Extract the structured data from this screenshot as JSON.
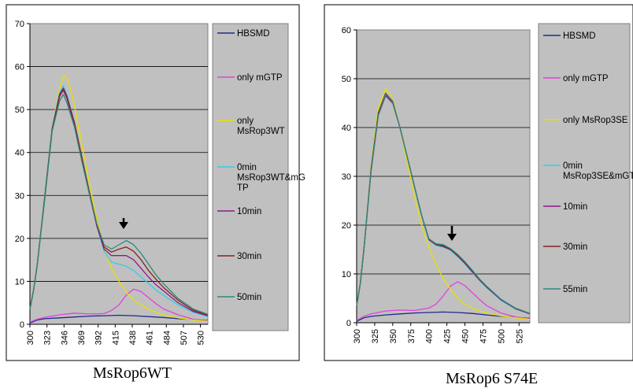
{
  "chart_data": [
    {
      "type": "line",
      "title": "MsRop6WT",
      "xlabel": "",
      "ylabel": "",
      "ylim": [
        0,
        70
      ],
      "yticks": [
        0,
        10,
        20,
        30,
        40,
        50,
        60,
        70
      ],
      "xticks": [
        300,
        323,
        346,
        369,
        392,
        415,
        438,
        461,
        484,
        507,
        530
      ],
      "xlim": [
        300,
        540
      ],
      "grid": "horizontal",
      "legend_position": "right",
      "series": [
        {
          "name": "HBSMD",
          "color": "#1f2a8c",
          "x": [
            300,
            310,
            320,
            340,
            360,
            380,
            400,
            420,
            440,
            460,
            480,
            500,
            520,
            540
          ],
          "y": [
            0.3,
            1.0,
            1.3,
            1.5,
            1.7,
            1.9,
            2.0,
            2.1,
            2.0,
            1.8,
            1.6,
            1.3,
            1.1,
            0.9
          ]
        },
        {
          "name": "only mGTP",
          "color": "#e040e0",
          "x": [
            300,
            310,
            320,
            340,
            360,
            380,
            400,
            410,
            420,
            430,
            440,
            450,
            460,
            470,
            480,
            500,
            520,
            540
          ],
          "y": [
            0.5,
            1.2,
            1.6,
            2.2,
            2.6,
            2.4,
            2.5,
            3.2,
            4.5,
            6.8,
            8.2,
            7.6,
            6.2,
            4.8,
            3.6,
            2.2,
            1.2,
            0.8
          ]
        },
        {
          "name": "only MsRop3WT",
          "color": "#e8e000",
          "x": [
            300,
            305,
            310,
            320,
            330,
            340,
            346,
            352,
            360,
            370,
            380,
            390,
            400,
            410,
            420,
            430,
            440,
            450,
            460,
            470,
            480,
            500,
            520,
            540
          ],
          "y": [
            3.5,
            8,
            14,
            30,
            46,
            55,
            58,
            56.5,
            51,
            42,
            33,
            24.5,
            18,
            13,
            10,
            7.5,
            5.5,
            4.5,
            3.5,
            2.8,
            2.2,
            1.5,
            1.0,
            0.7
          ]
        },
        {
          "name": "0min MsRop3WT&mGTP",
          "color": "#33ccee",
          "x": [
            300,
            305,
            310,
            320,
            330,
            340,
            345,
            350,
            360,
            370,
            380,
            390,
            400,
            410,
            420,
            430,
            440,
            450,
            460,
            470,
            480,
            500,
            520,
            540
          ],
          "y": [
            3.5,
            8,
            14,
            30,
            46,
            54,
            55.5,
            53.5,
            47,
            39,
            31,
            23,
            17,
            14.5,
            14,
            13.5,
            12.5,
            11,
            9.5,
            8,
            6.8,
            4.5,
            2.8,
            1.8
          ]
        },
        {
          "name": "10min",
          "color": "#8a1a8a",
          "x": [
            300,
            305,
            310,
            320,
            330,
            340,
            345,
            350,
            360,
            370,
            380,
            390,
            400,
            410,
            420,
            430,
            440,
            450,
            460,
            470,
            480,
            500,
            520,
            540
          ],
          "y": [
            3.5,
            8,
            14,
            29.5,
            45.5,
            53,
            54.5,
            52.5,
            46.5,
            38.5,
            30.5,
            23,
            17.5,
            16,
            16,
            16,
            15,
            13,
            11,
            9.2,
            7.8,
            5,
            3,
            2
          ]
        },
        {
          "name": "30min",
          "color": "#8b2020",
          "x": [
            300,
            305,
            310,
            320,
            330,
            340,
            345,
            350,
            360,
            370,
            380,
            390,
            400,
            410,
            420,
            430,
            440,
            450,
            460,
            470,
            480,
            500,
            520,
            540
          ],
          "y": [
            3.5,
            8,
            14,
            29.5,
            45.5,
            53.5,
            55,
            53,
            47,
            39,
            31,
            23.5,
            18,
            16.8,
            17.5,
            18,
            17,
            15,
            12.5,
            10.5,
            8.6,
            5.6,
            3.3,
            2.1
          ]
        },
        {
          "name": "50min",
          "color": "#2a8a7a",
          "x": [
            300,
            305,
            310,
            320,
            330,
            340,
            345,
            350,
            360,
            370,
            380,
            390,
            400,
            410,
            420,
            430,
            440,
            450,
            460,
            470,
            480,
            500,
            520,
            540
          ],
          "y": [
            3.5,
            8,
            14,
            29,
            45,
            52,
            53.5,
            51.5,
            46,
            38,
            30.5,
            23.5,
            18.5,
            17.5,
            18.5,
            19.5,
            18.5,
            16.5,
            14,
            11.5,
            9.5,
            6,
            3.6,
            2.3
          ]
        }
      ]
    },
    {
      "type": "line",
      "title": "MsRop6 S74E",
      "xlabel": "",
      "ylabel": "",
      "ylim": [
        0,
        60
      ],
      "yticks": [
        0,
        10,
        20,
        30,
        40,
        50,
        60
      ],
      "xticks": [
        300,
        325,
        350,
        375,
        400,
        425,
        450,
        475,
        500,
        525
      ],
      "xlim": [
        300,
        540
      ],
      "grid": "horizontal",
      "legend_position": "right",
      "series": [
        {
          "name": "HBSMD",
          "color": "#1f2a8c",
          "x": [
            300,
            310,
            320,
            340,
            360,
            380,
            400,
            420,
            440,
            460,
            480,
            500,
            520,
            540
          ],
          "y": [
            0.3,
            1.0,
            1.3,
            1.6,
            1.8,
            2.0,
            2.1,
            2.2,
            2.1,
            1.9,
            1.6,
            1.3,
            1.1,
            0.9
          ]
        },
        {
          "name": "only mGTP",
          "color": "#e040e0",
          "x": [
            300,
            310,
            320,
            340,
            360,
            380,
            400,
            410,
            420,
            430,
            440,
            450,
            460,
            470,
            480,
            500,
            520,
            540
          ],
          "y": [
            0.5,
            1.3,
            1.8,
            2.4,
            2.6,
            2.5,
            3.0,
            3.8,
            5.5,
            7.5,
            8.4,
            7.6,
            6.2,
            4.8,
            3.5,
            2.0,
            1.2,
            0.8
          ]
        },
        {
          "name": "only MsRop3SE",
          "color": "#e8e000",
          "x": [
            300,
            305,
            310,
            320,
            330,
            340,
            350,
            360,
            370,
            380,
            390,
            400,
            410,
            420,
            430,
            440,
            450,
            460,
            470,
            480,
            500,
            520,
            540
          ],
          "y": [
            3.5,
            8,
            15,
            32,
            44,
            48,
            46,
            40,
            33,
            26,
            20,
            15.5,
            12,
            9,
            6.8,
            5,
            3.8,
            3,
            2.4,
            2,
            1.4,
            1,
            0.7
          ]
        },
        {
          "name": "0min MsRop3SE&mGTP",
          "color": "#33ccee",
          "x": [
            300,
            305,
            310,
            320,
            330,
            340,
            350,
            360,
            370,
            380,
            390,
            400,
            410,
            420,
            430,
            440,
            450,
            460,
            470,
            480,
            500,
            520,
            540
          ],
          "y": [
            3.5,
            8,
            15,
            31.5,
            43,
            47,
            45.5,
            40,
            34,
            28,
            22,
            17,
            15.8,
            15.5,
            14.8,
            13.5,
            12,
            10.3,
            8.7,
            7.2,
            4.6,
            2.8,
            1.8
          ]
        },
        {
          "name": "10min",
          "color": "#8a1a8a",
          "x": [
            300,
            305,
            310,
            320,
            330,
            340,
            350,
            360,
            370,
            380,
            390,
            400,
            410,
            420,
            430,
            440,
            450,
            460,
            470,
            480,
            500,
            520,
            540
          ],
          "y": [
            3.5,
            8,
            15,
            31,
            42.5,
            46.5,
            45,
            40,
            34,
            28,
            22,
            17,
            16,
            15.8,
            15,
            13.7,
            12.2,
            10.5,
            8.8,
            7.3,
            4.7,
            2.9,
            1.8
          ]
        },
        {
          "name": "30min",
          "color": "#8b2020",
          "x": [
            300,
            305,
            310,
            320,
            330,
            340,
            350,
            360,
            370,
            380,
            390,
            400,
            410,
            420,
            430,
            440,
            450,
            460,
            470,
            480,
            500,
            520,
            540
          ],
          "y": [
            3.5,
            8,
            15,
            31.5,
            43,
            47,
            45.3,
            40,
            34,
            28,
            22,
            17.2,
            16,
            15.6,
            15,
            13.8,
            12.3,
            10.6,
            8.9,
            7.4,
            4.8,
            2.9,
            1.9
          ]
        },
        {
          "name": "55min",
          "color": "#2a8a7a",
          "x": [
            300,
            305,
            310,
            320,
            330,
            340,
            350,
            360,
            370,
            380,
            390,
            400,
            410,
            420,
            430,
            440,
            450,
            460,
            470,
            480,
            500,
            520,
            540
          ],
          "y": [
            3.5,
            8,
            15,
            31,
            42.5,
            46.8,
            45.2,
            40,
            34,
            28,
            22,
            17.2,
            16.2,
            16,
            15.2,
            14,
            12.5,
            10.8,
            9,
            7.5,
            4.8,
            3,
            1.9
          ]
        }
      ]
    }
  ],
  "arrow_icon": "arrow-down-icon"
}
